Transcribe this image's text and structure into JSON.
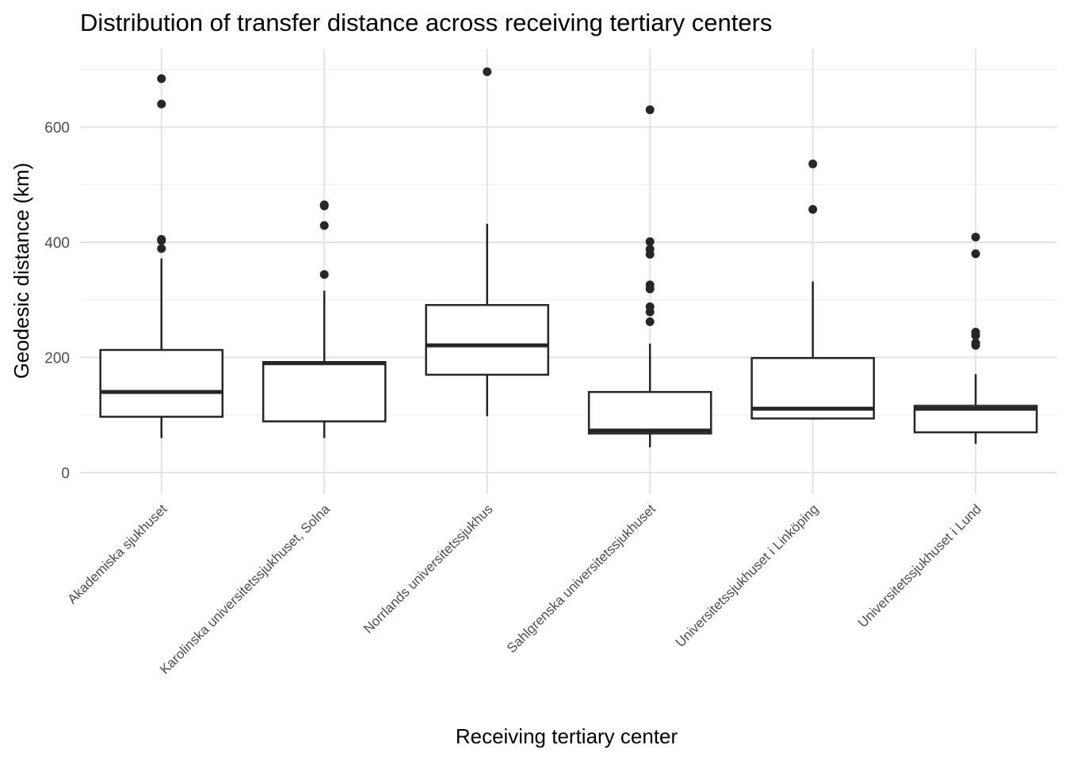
{
  "chart_data": {
    "type": "box",
    "title": "Distribution of transfer distance across receiving tertiary centers",
    "xlabel": "Receiving tertiary center",
    "ylabel": "Geodesic distance (km)",
    "ylim": [
      -35,
      735
    ],
    "yticks": [
      0,
      200,
      400,
      600
    ],
    "grid": true,
    "legend": "none",
    "colors": {
      "box_stroke": "#262626",
      "outlier": "#262626",
      "grid_major": "#e3e3e3",
      "grid_minor": "#efefef",
      "tick_text": "#4d4d4d"
    },
    "categories": [
      "Akademiska sjukhuset",
      "Karolinska universitetssjukhuset, Solna",
      "Norrlands universitetssjukhus",
      "Sahlgrenska universitetssjukhuset",
      "Universitetssjukhuset i Linköping",
      "Universitetssjukhuset i Lund"
    ],
    "boxes": [
      {
        "category": "Akademiska sjukhuset",
        "whisker_low": 60,
        "q1": 97,
        "median": 140,
        "q3": 213,
        "whisker_high": 372,
        "outliers": [
          684,
          640,
          405,
          403,
          389
        ]
      },
      {
        "category": "Karolinska universitetssjukhuset, Solna",
        "whisker_low": 60,
        "q1": 89,
        "median": 190,
        "q3": 192,
        "whisker_high": 316,
        "outliers": [
          465,
          463,
          429,
          344
        ]
      },
      {
        "category": "Norrlands universitetssjukhus",
        "whisker_low": 98,
        "q1": 170,
        "median": 221,
        "q3": 291,
        "whisker_high": 432,
        "outliers": [
          696
        ]
      },
      {
        "category": "Sahlgrenska universitetssjukhuset",
        "whisker_low": 44,
        "q1": 68,
        "median": 73,
        "q3": 140,
        "whisker_high": 224,
        "outliers": [
          630,
          401,
          388,
          379,
          326,
          319,
          288,
          279,
          262
        ]
      },
      {
        "category": "Universitetssjukhuset i Linköping",
        "whisker_low": 92,
        "q1": 94,
        "median": 111,
        "q3": 199,
        "whisker_high": 332,
        "outliers": [
          536,
          457
        ]
      },
      {
        "category": "Universitetssjukhuset i Lund",
        "whisker_low": 50,
        "q1": 70,
        "median": 111,
        "q3": 116,
        "whisker_high": 171,
        "outliers": [
          409,
          380,
          244,
          238,
          225,
          221
        ]
      }
    ]
  }
}
